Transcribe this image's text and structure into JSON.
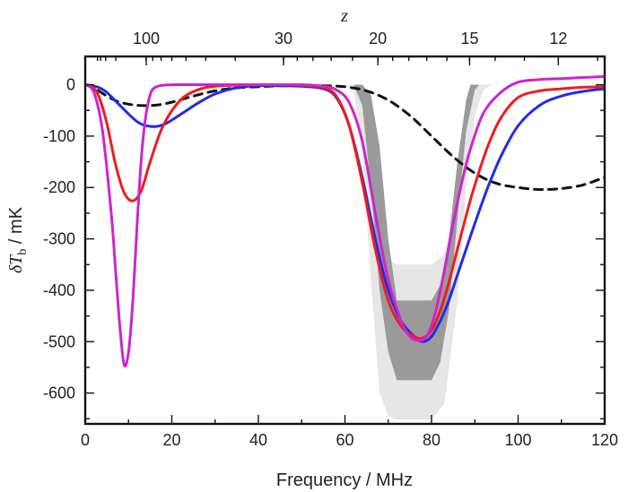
{
  "chart_data": {
    "type": "line",
    "title": "",
    "xlabel": "Frequency / MHz",
    "ylabel_main": "δT",
    "ylabel_sub": "b",
    "ylabel_unit": " / mK",
    "top_axis_label": "z",
    "xlim": [
      0,
      120
    ],
    "ylim": [
      -660,
      55
    ],
    "x_ticks": [
      0,
      20,
      40,
      60,
      80,
      100,
      120
    ],
    "x_tick_labels": [
      "0",
      "20",
      "40",
      "60",
      "80",
      "100",
      "120"
    ],
    "y_ticks": [
      0,
      -100,
      -200,
      -300,
      -400,
      -500,
      -600
    ],
    "y_tick_labels": [
      "0",
      "-100",
      "-200",
      "-300",
      "-400",
      "-500",
      "-600"
    ],
    "top_ticks": [
      {
        "label": "100",
        "freq": 14.1
      },
      {
        "label": "30",
        "freq": 45.8
      },
      {
        "label": "20",
        "freq": 67.6
      },
      {
        "label": "15",
        "freq": 88.8
      },
      {
        "label": "12",
        "freq": 109.3
      }
    ],
    "bands": [
      {
        "name": "outer-band",
        "color": "#e6e6e6",
        "upper": [
          [
            0,
            0
          ],
          [
            60,
            0
          ],
          [
            64,
            -5
          ],
          [
            66,
            -40
          ],
          [
            68,
            -180
          ],
          [
            70,
            -340
          ],
          [
            72,
            -350
          ],
          [
            80,
            -350
          ],
          [
            83,
            -330
          ],
          [
            85,
            -250
          ],
          [
            87,
            -100
          ],
          [
            88,
            -30
          ],
          [
            89,
            0
          ],
          [
            120,
            0
          ]
        ],
        "lower": [
          [
            0,
            0
          ],
          [
            60,
            0
          ],
          [
            62,
            -10
          ],
          [
            64,
            -130
          ],
          [
            66,
            -380
          ],
          [
            68,
            -600
          ],
          [
            70,
            -645
          ],
          [
            72,
            -652
          ],
          [
            80,
            -652
          ],
          [
            83,
            -620
          ],
          [
            86,
            -420
          ],
          [
            88,
            -200
          ],
          [
            90,
            -60
          ],
          [
            92,
            -10
          ],
          [
            94,
            0
          ],
          [
            120,
            0
          ]
        ]
      },
      {
        "name": "inner-band",
        "color": "#9a9a9a",
        "upper": [
          [
            0,
            0
          ],
          [
            64,
            0
          ],
          [
            66,
            -20
          ],
          [
            68,
            -120
          ],
          [
            70,
            -300
          ],
          [
            72,
            -420
          ],
          [
            80,
            -420
          ],
          [
            82,
            -390
          ],
          [
            84,
            -300
          ],
          [
            86,
            -150
          ],
          [
            88,
            -30
          ],
          [
            89,
            0
          ],
          [
            120,
            0
          ]
        ],
        "lower": [
          [
            0,
            0
          ],
          [
            62,
            0
          ],
          [
            64,
            -40
          ],
          [
            66,
            -200
          ],
          [
            68,
            -400
          ],
          [
            70,
            -520
          ],
          [
            72,
            -575
          ],
          [
            80,
            -575
          ],
          [
            82,
            -540
          ],
          [
            84,
            -440
          ],
          [
            86,
            -260
          ],
          [
            88,
            -90
          ],
          [
            90,
            -10
          ],
          [
            91,
            0
          ],
          [
            120,
            0
          ]
        ]
      }
    ],
    "series": [
      {
        "name": "dashed-black",
        "color": "#111111",
        "dash": "9,7",
        "x": [
          0,
          2,
          5,
          8,
          12,
          16,
          20,
          25,
          30,
          35,
          40,
          45,
          50,
          55,
          60,
          65,
          70,
          75,
          80,
          85,
          90,
          95,
          100,
          105,
          110,
          115,
          120
        ],
        "y": [
          0,
          -6,
          -22,
          -34,
          -40,
          -40,
          -34,
          -22,
          -12,
          -6,
          -4,
          -2,
          -2,
          -2,
          -4,
          -12,
          -30,
          -60,
          -100,
          -140,
          -172,
          -192,
          -200,
          -204,
          -202,
          -195,
          -180
        ]
      },
      {
        "name": "blue",
        "color": "#1f2ee6",
        "dash": "",
        "x": [
          0,
          1.5,
          3,
          5,
          8,
          12,
          15,
          18,
          22,
          26,
          30,
          35,
          40,
          45,
          50,
          55,
          58,
          61,
          64,
          67,
          70,
          73,
          76,
          78,
          80,
          82,
          84,
          86,
          88,
          90,
          93,
          96,
          100,
          105,
          110,
          115,
          120
        ],
        "y": [
          0,
          -2,
          -5,
          -15,
          -40,
          -72,
          -81,
          -78,
          -58,
          -36,
          -18,
          -6,
          -2,
          -2,
          -3,
          -8,
          -25,
          -80,
          -180,
          -300,
          -400,
          -460,
          -490,
          -500,
          -490,
          -460,
          -420,
          -370,
          -320,
          -270,
          -200,
          -140,
          -80,
          -40,
          -22,
          -13,
          -8
        ]
      },
      {
        "name": "red",
        "color": "#ef1c1c",
        "dash": "",
        "x": [
          0,
          1.5,
          3,
          5,
          7,
          9,
          11,
          13,
          15,
          18,
          22,
          26,
          30,
          35,
          40,
          45,
          50,
          55,
          58,
          61,
          64,
          67,
          70,
          73,
          76,
          78,
          80,
          82,
          84,
          86,
          88,
          90,
          93,
          96,
          100,
          105,
          110,
          115,
          120
        ],
        "y": [
          0,
          -4,
          -20,
          -75,
          -155,
          -210,
          -226,
          -205,
          -150,
          -80,
          -30,
          -10,
          -3,
          -1,
          0,
          0,
          -1,
          -6,
          -22,
          -80,
          -190,
          -320,
          -420,
          -470,
          -490,
          -493,
          -478,
          -440,
          -385,
          -320,
          -255,
          -195,
          -120,
          -65,
          -25,
          -12,
          -8,
          -5,
          -4
        ]
      },
      {
        "name": "magenta",
        "color": "#cc26cc",
        "dash": "",
        "x": [
          0,
          2,
          4,
          6,
          7,
          8,
          9,
          10,
          11,
          12,
          13,
          14,
          15,
          16,
          18,
          22,
          26,
          30,
          40,
          50,
          55,
          58,
          61,
          64,
          67,
          70,
          73,
          75,
          77,
          79,
          81,
          83,
          85,
          87,
          89,
          92,
          96,
          100,
          105,
          110,
          115,
          120
        ],
        "y": [
          0,
          -15,
          -90,
          -250,
          -360,
          -470,
          -545,
          -520,
          -420,
          -270,
          -140,
          -60,
          -20,
          -6,
          -1,
          0,
          0,
          0,
          0,
          0,
          -3,
          -10,
          -35,
          -110,
          -250,
          -380,
          -460,
          -490,
          -498,
          -488,
          -440,
          -360,
          -270,
          -190,
          -125,
          -55,
          -15,
          5,
          10,
          12,
          14,
          16
        ]
      }
    ]
  }
}
